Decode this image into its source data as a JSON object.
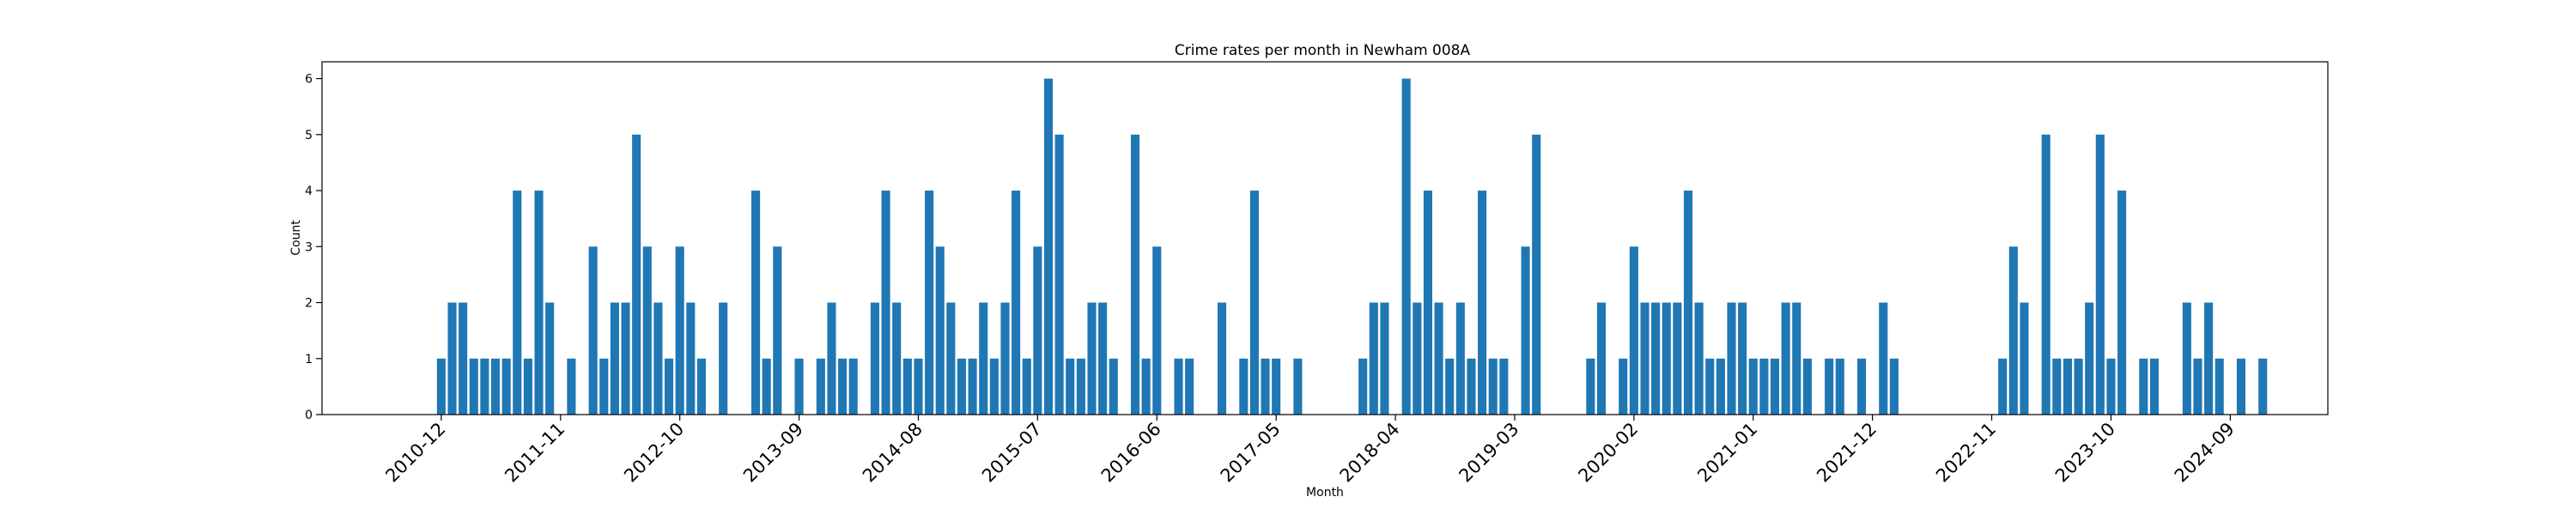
{
  "chart_data": {
    "type": "bar",
    "title": "Crime rates per month in Newham 008A",
    "xlabel": "Month",
    "ylabel": "Count",
    "ylim": [
      0,
      6.3
    ],
    "yticks": [
      0,
      1,
      2,
      3,
      4,
      5,
      6
    ],
    "xlim": [
      "2010-01",
      "2025-06"
    ],
    "xticks": [
      "2010-12",
      "2011-11",
      "2012-10",
      "2013-09",
      "2014-08",
      "2015-07",
      "2016-06",
      "2017-05",
      "2018-04",
      "2019-03",
      "2020-02",
      "2021-01",
      "2021-12",
      "2022-11",
      "2023-10",
      "2024-09"
    ],
    "grid": false,
    "color": "#1f77b4",
    "categories": [
      "2010-12",
      "2011-01",
      "2011-02",
      "2011-03",
      "2011-04",
      "2011-05",
      "2011-06",
      "2011-07",
      "2011-08",
      "2011-09",
      "2011-10",
      "2011-12",
      "2012-02",
      "2012-03",
      "2012-04",
      "2012-05",
      "2012-06",
      "2012-07",
      "2012-08",
      "2012-09",
      "2012-10",
      "2012-11",
      "2012-12",
      "2013-02",
      "2013-05",
      "2013-06",
      "2013-07",
      "2013-09",
      "2013-11",
      "2013-12",
      "2014-01",
      "2014-02",
      "2014-04",
      "2014-05",
      "2014-06",
      "2014-07",
      "2014-08",
      "2014-09",
      "2014-10",
      "2014-11",
      "2014-12",
      "2015-01",
      "2015-02",
      "2015-03",
      "2015-04",
      "2015-05",
      "2015-06",
      "2015-07",
      "2015-08",
      "2015-09",
      "2015-10",
      "2015-11",
      "2015-12",
      "2016-01",
      "2016-02",
      "2016-04",
      "2016-05",
      "2016-06",
      "2016-08",
      "2016-09",
      "2016-12",
      "2017-02",
      "2017-03",
      "2017-04",
      "2017-05",
      "2017-07",
      "2018-01",
      "2018-02",
      "2018-03",
      "2018-05",
      "2018-06",
      "2018-07",
      "2018-08",
      "2018-09",
      "2018-10",
      "2018-11",
      "2018-12",
      "2019-01",
      "2019-02",
      "2019-04",
      "2019-05",
      "2019-10",
      "2019-11",
      "2020-01",
      "2020-02",
      "2020-03",
      "2020-04",
      "2020-05",
      "2020-06",
      "2020-07",
      "2020-08",
      "2020-09",
      "2020-10",
      "2020-11",
      "2020-12",
      "2021-01",
      "2021-02",
      "2021-03",
      "2021-04",
      "2021-05",
      "2021-06",
      "2021-08",
      "2021-09",
      "2021-11",
      "2022-01",
      "2022-02",
      "2022-12",
      "2023-01",
      "2023-02",
      "2023-04",
      "2023-05",
      "2023-06",
      "2023-07",
      "2023-08",
      "2023-09",
      "2023-10",
      "2023-11",
      "2024-01",
      "2024-02",
      "2024-05",
      "2024-06",
      "2024-07",
      "2024-08",
      "2024-10",
      "2024-12"
    ],
    "values": [
      1,
      2,
      2,
      1,
      1,
      1,
      1,
      4,
      1,
      4,
      2,
      1,
      3,
      1,
      2,
      2,
      5,
      3,
      2,
      1,
      3,
      2,
      1,
      2,
      4,
      1,
      3,
      1,
      1,
      2,
      1,
      1,
      2,
      4,
      2,
      1,
      1,
      4,
      3,
      2,
      1,
      1,
      2,
      1,
      2,
      4,
      1,
      3,
      6,
      5,
      1,
      1,
      2,
      2,
      1,
      5,
      1,
      3,
      1,
      1,
      2,
      1,
      4,
      1,
      1,
      1,
      1,
      2,
      2,
      6,
      2,
      4,
      2,
      1,
      2,
      1,
      4,
      1,
      1,
      3,
      5,
      1,
      2,
      1,
      3,
      2,
      2,
      2,
      2,
      4,
      2,
      1,
      1,
      2,
      2,
      1,
      1,
      1,
      2,
      2,
      1,
      1,
      1,
      1,
      2,
      1,
      1,
      3,
      2,
      5,
      1,
      1,
      1,
      2,
      5,
      1,
      4,
      1,
      1,
      2,
      1,
      2,
      1,
      1,
      1
    ]
  }
}
